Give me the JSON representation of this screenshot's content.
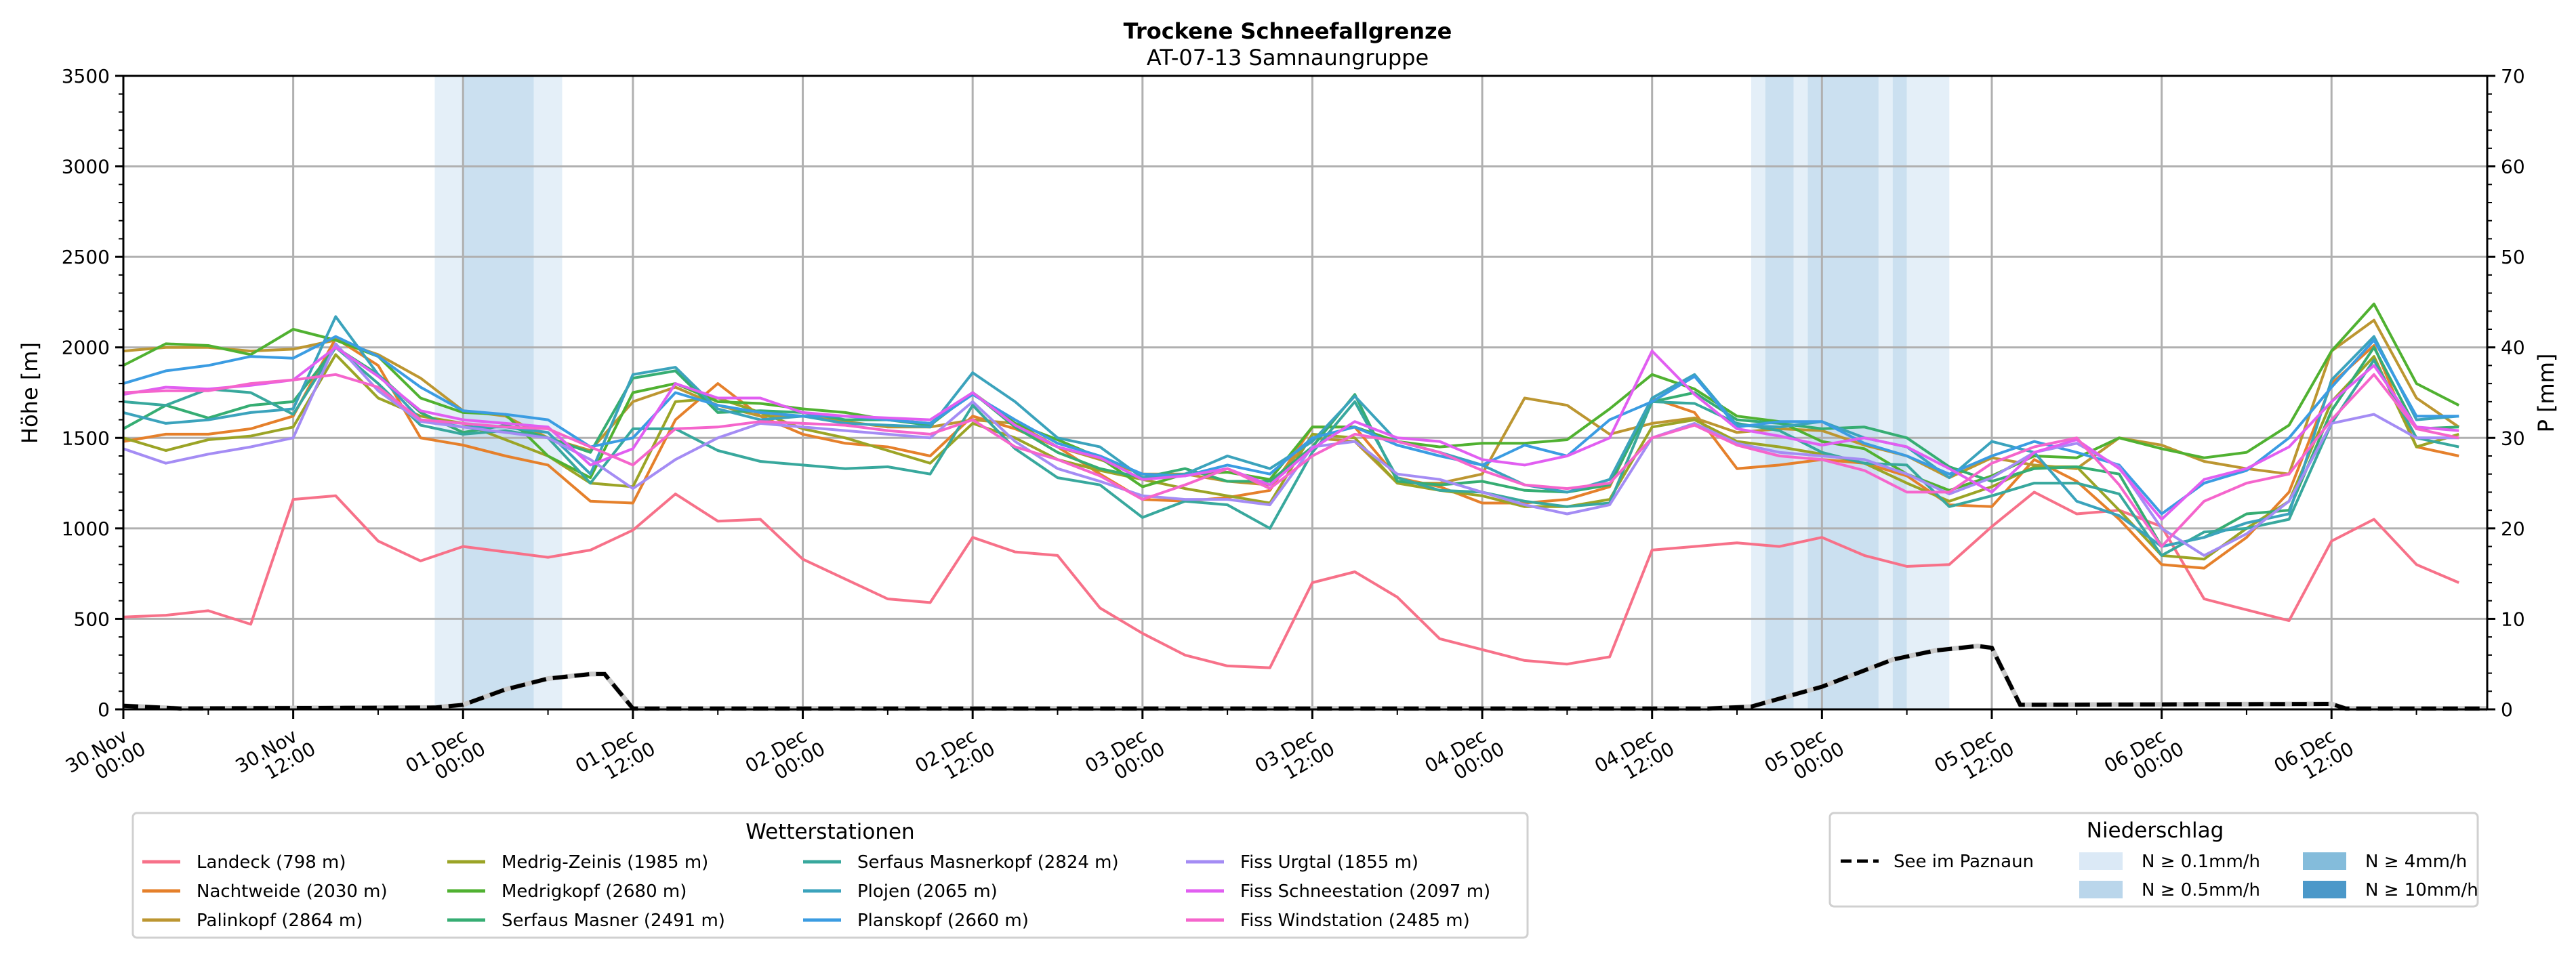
{
  "chart_data": {
    "type": "line",
    "title": "Trockene Schneefallgrenze",
    "subtitle": "AT-07-13 Samnaungruppe",
    "ylabel": "Höhe [m]",
    "y2label": "P [mm]",
    "ylim": [
      0,
      3500
    ],
    "y2lim": [
      0,
      70
    ],
    "yticks": [
      "0",
      "500",
      "1000",
      "1500",
      "2000",
      "2500",
      "3000",
      "3500"
    ],
    "y2ticks": [
      "0",
      "10",
      "20",
      "30",
      "40",
      "50",
      "60",
      "70"
    ],
    "x_unit": "hours since 30.Nov 00:00",
    "xlim": [
      0,
      167
    ],
    "xticks": [
      {
        "h": 0,
        "l1": "30.Nov",
        "l2": "00:00"
      },
      {
        "h": 12,
        "l1": "30.Nov",
        "l2": "12:00"
      },
      {
        "h": 24,
        "l1": "01.Dec",
        "l2": "00:00"
      },
      {
        "h": 36,
        "l1": "01.Dec",
        "l2": "12:00"
      },
      {
        "h": 48,
        "l1": "02.Dec",
        "l2": "00:00"
      },
      {
        "h": 60,
        "l1": "02.Dec",
        "l2": "12:00"
      },
      {
        "h": 72,
        "l1": "03.Dec",
        "l2": "00:00"
      },
      {
        "h": 84,
        "l1": "03.Dec",
        "l2": "12:00"
      },
      {
        "h": 96,
        "l1": "04.Dec",
        "l2": "00:00"
      },
      {
        "h": 108,
        "l1": "04.Dec",
        "l2": "12:00"
      },
      {
        "h": 120,
        "l1": "05.Dec",
        "l2": "00:00"
      },
      {
        "h": 132,
        "l1": "05.Dec",
        "l2": "12:00"
      },
      {
        "h": 144,
        "l1": "06.Dec",
        "l2": "00:00"
      },
      {
        "h": 156,
        "l1": "06.Dec",
        "l2": "12:00"
      }
    ],
    "grid": true,
    "x_step_hours": 3,
    "series": [
      {
        "name": "Landeck (798 m)",
        "color": "#f77189",
        "values": [
          510,
          520,
          545,
          470,
          1160,
          1180,
          930,
          820,
          900,
          870,
          840,
          880,
          990,
          1190,
          1040,
          1050,
          830,
          720,
          610,
          590,
          950,
          870,
          850,
          560,
          420,
          300,
          240,
          230,
          700,
          760,
          620,
          390,
          330,
          270,
          250,
          290,
          880,
          900,
          920,
          900,
          950,
          850,
          790,
          800,
          1010,
          1200,
          1080,
          1100,
          1010,
          610,
          550,
          490,
          930,
          1050,
          800,
          700
        ]
      },
      {
        "name": "Nachtweide (2030 m)",
        "color": "#e5802b",
        "values": [
          1480,
          1520,
          1520,
          1550,
          1620,
          2050,
          1900,
          1500,
          1460,
          1400,
          1350,
          1150,
          1140,
          1600,
          1800,
          1620,
          1520,
          1470,
          1450,
          1400,
          1620,
          1550,
          1450,
          1300,
          1160,
          1150,
          1170,
          1210,
          1560,
          1560,
          1280,
          1230,
          1140,
          1140,
          1160,
          1230,
          1720,
          1640,
          1330,
          1350,
          1380,
          1360,
          1290,
          1130,
          1120,
          1380,
          1260,
          1050,
          800,
          780,
          950,
          1200,
          1800,
          2010,
          1450,
          1400
        ]
      },
      {
        "name": "Palinkopf (2864 m)",
        "color": "#bc9631",
        "values": [
          1980,
          2000,
          2000,
          1980,
          1990,
          2040,
          1960,
          1830,
          1650,
          1620,
          1500,
          1430,
          1700,
          1780,
          1680,
          1620,
          1620,
          1590,
          1560,
          1560,
          1600,
          1580,
          1450,
          1380,
          1300,
          1300,
          1260,
          1240,
          1500,
          1480,
          1250,
          1250,
          1300,
          1720,
          1680,
          1520,
          1580,
          1610,
          1530,
          1550,
          1540,
          1460,
          1400,
          1280,
          1390,
          1350,
          1330,
          1500,
          1460,
          1370,
          1330,
          1300,
          1980,
          2150,
          1720,
          1560
        ]
      },
      {
        "name": "Medrig-Zeinis (1985 m)",
        "color": "#9ba426",
        "values": [
          1500,
          1430,
          1490,
          1510,
          1560,
          1960,
          1720,
          1620,
          1580,
          1490,
          1400,
          1250,
          1230,
          1700,
          1720,
          1640,
          1550,
          1500,
          1430,
          1360,
          1580,
          1500,
          1380,
          1320,
          1270,
          1220,
          1180,
          1140,
          1520,
          1500,
          1250,
          1210,
          1180,
          1120,
          1120,
          1160,
          1560,
          1600,
          1480,
          1450,
          1410,
          1360,
          1250,
          1150,
          1230,
          1340,
          1340,
          1100,
          850,
          830,
          1000,
          1150,
          1700,
          1950,
          1450,
          1520
        ]
      },
      {
        "name": "Medrigkopf (2680 m)",
        "color": "#50b131",
        "values": [
          1900,
          2020,
          2010,
          1960,
          2100,
          2040,
          1950,
          1720,
          1640,
          1630,
          1400,
          1280,
          1750,
          1800,
          1700,
          1690,
          1660,
          1640,
          1600,
          1580,
          1750,
          1580,
          1490,
          1390,
          1230,
          1300,
          1310,
          1270,
          1560,
          1560,
          1480,
          1450,
          1470,
          1470,
          1490,
          1660,
          1850,
          1770,
          1620,
          1590,
          1480,
          1440,
          1300,
          1210,
          1290,
          1400,
          1390,
          1500,
          1440,
          1390,
          1420,
          1570,
          1980,
          2240,
          1800,
          1680
        ]
      },
      {
        "name": "Serfaus Masner (2491 m)",
        "color": "#36ad73",
        "values": [
          1550,
          1680,
          1610,
          1680,
          1700,
          2000,
          1850,
          1640,
          1530,
          1570,
          1500,
          1420,
          1830,
          1870,
          1640,
          1650,
          1640,
          1600,
          1600,
          1570,
          1750,
          1560,
          1420,
          1330,
          1280,
          1330,
          1260,
          1260,
          1450,
          1740,
          1260,
          1240,
          1260,
          1210,
          1200,
          1240,
          1700,
          1750,
          1600,
          1580,
          1550,
          1560,
          1500,
          1340,
          1260,
          1330,
          1340,
          1300,
          900,
          950,
          1080,
          1100,
          1650,
          2000,
          1550,
          1560
        ]
      },
      {
        "name": "Serfaus Masnerkopf (2824 m)",
        "color": "#38a89d",
        "values": [
          1700,
          1680,
          1770,
          1750,
          1630,
          2000,
          1800,
          1570,
          1520,
          1540,
          1500,
          1250,
          1550,
          1550,
          1430,
          1370,
          1350,
          1330,
          1340,
          1300,
          1680,
          1440,
          1280,
          1240,
          1060,
          1150,
          1130,
          1000,
          1420,
          1700,
          1280,
          1210,
          1200,
          1150,
          1120,
          1140,
          1700,
          1690,
          1580,
          1540,
          1420,
          1360,
          1350,
          1120,
          1180,
          1250,
          1250,
          1190,
          850,
          980,
          1000,
          1050,
          1580,
          1930,
          1500,
          1450
        ]
      },
      {
        "name": "Plojen (2065 m)",
        "color": "#3ba3bc",
        "values": [
          1640,
          1580,
          1600,
          1640,
          1660,
          2170,
          1850,
          1600,
          1560,
          1560,
          1530,
          1300,
          1850,
          1890,
          1660,
          1600,
          1620,
          1580,
          1570,
          1560,
          1860,
          1700,
          1500,
          1450,
          1280,
          1300,
          1400,
          1330,
          1480,
          1730,
          1480,
          1420,
          1350,
          1240,
          1200,
          1270,
          1720,
          1850,
          1570,
          1560,
          1590,
          1500,
          1450,
          1280,
          1480,
          1420,
          1150,
          1070,
          900,
          950,
          1030,
          1080,
          1820,
          2060,
          1600,
          1620
        ]
      },
      {
        "name": "Planskopf (2660 m)",
        "color": "#3b9ce2",
        "values": [
          1800,
          1870,
          1900,
          1950,
          1940,
          2060,
          1950,
          1780,
          1650,
          1630,
          1600,
          1450,
          1500,
          1750,
          1680,
          1640,
          1620,
          1620,
          1600,
          1580,
          1740,
          1600,
          1470,
          1400,
          1300,
          1290,
          1350,
          1300,
          1500,
          1560,
          1460,
          1400,
          1350,
          1460,
          1400,
          1600,
          1700,
          1840,
          1560,
          1590,
          1590,
          1470,
          1400,
          1300,
          1400,
          1480,
          1420,
          1350,
          1080,
          1250,
          1320,
          1500,
          1780,
          2040,
          1620,
          1620
        ]
      },
      {
        "name": "Fiss Urgtal  (1855 m)",
        "color": "#a48cf4",
        "values": [
          1440,
          1360,
          1410,
          1450,
          1500,
          2020,
          1760,
          1590,
          1560,
          1530,
          1500,
          1380,
          1220,
          1380,
          1500,
          1580,
          1560,
          1540,
          1520,
          1500,
          1700,
          1480,
          1330,
          1260,
          1180,
          1160,
          1160,
          1130,
          1450,
          1480,
          1300,
          1270,
          1200,
          1130,
          1080,
          1130,
          1500,
          1580,
          1470,
          1420,
          1400,
          1380,
          1300,
          1190,
          1280,
          1420,
          1470,
          1340,
          1000,
          850,
          970,
          1150,
          1580,
          1630,
          1500,
          1500
        ]
      },
      {
        "name": "Fiss Schneestation (2097 m)",
        "color": "#e15ef1",
        "values": [
          1740,
          1780,
          1770,
          1790,
          1820,
          2000,
          1840,
          1650,
          1600,
          1580,
          1560,
          1350,
          1440,
          1800,
          1720,
          1720,
          1640,
          1620,
          1610,
          1600,
          1750,
          1570,
          1450,
          1390,
          1270,
          1290,
          1330,
          1240,
          1440,
          1590,
          1500,
          1480,
          1380,
          1350,
          1400,
          1500,
          1980,
          1740,
          1550,
          1510,
          1460,
          1500,
          1450,
          1330,
          1200,
          1420,
          1490,
          1330,
          1050,
          1270,
          1330,
          1450,
          1700,
          1900,
          1560,
          1540
        ]
      },
      {
        "name": "Fiss Windstation (2485 m)",
        "color": "#f565cc",
        "values": [
          1750,
          1760,
          1760,
          1800,
          1820,
          1850,
          1780,
          1600,
          1580,
          1560,
          1550,
          1450,
          1350,
          1550,
          1560,
          1590,
          1580,
          1570,
          1540,
          1520,
          1600,
          1450,
          1380,
          1290,
          1160,
          1240,
          1330,
          1220,
          1400,
          1520,
          1480,
          1420,
          1320,
          1240,
          1220,
          1250,
          1500,
          1570,
          1460,
          1400,
          1380,
          1320,
          1200,
          1200,
          1360,
          1450,
          1500,
          1240,
          900,
          1150,
          1250,
          1300,
          1600,
          1850,
          1550,
          1500
        ]
      }
    ],
    "lake": {
      "name": "See im Paznaun",
      "color": "#000000",
      "points": [
        [
          0,
          0.4
        ],
        [
          4,
          0.1
        ],
        [
          22,
          0.2
        ],
        [
          24,
          0.5
        ],
        [
          27,
          2.2
        ],
        [
          30,
          3.4
        ],
        [
          33,
          3.9
        ],
        [
          34,
          3.9
        ],
        [
          36,
          0.1
        ],
        [
          112,
          0.1
        ],
        [
          115,
          0.3
        ],
        [
          120,
          2.5
        ],
        [
          125,
          5.5
        ],
        [
          128,
          6.5
        ],
        [
          131,
          7.0
        ],
        [
          132,
          6.8
        ],
        [
          134,
          0.5
        ],
        [
          156,
          0.6
        ],
        [
          157,
          0.1
        ],
        [
          167,
          0.1
        ]
      ]
    },
    "precip_bands": [
      {
        "start": 22,
        "end": 24,
        "level": "0.1"
      },
      {
        "start": 24,
        "end": 29,
        "level": "0.5"
      },
      {
        "start": 29,
        "end": 31,
        "level": "0.1"
      },
      {
        "start": 115,
        "end": 116,
        "level": "0.1"
      },
      {
        "start": 116,
        "end": 118,
        "level": "0.5"
      },
      {
        "start": 118,
        "end": 119,
        "level": "0.1"
      },
      {
        "start": 119,
        "end": 124,
        "level": "0.5"
      },
      {
        "start": 124,
        "end": 125,
        "level": "0.1"
      },
      {
        "start": 125,
        "end": 126,
        "level": "0.5"
      },
      {
        "start": 126,
        "end": 129,
        "level": "0.1"
      }
    ],
    "legend_stations_title": "Wetterstationen",
    "legend_precip_title": "Niederschlag",
    "precip_levels": [
      {
        "key": "0.1",
        "label": "N ≥ 0.1mm/h",
        "color": "#dbe9f6"
      },
      {
        "key": "0.5",
        "label": "N ≥ 0.5mm/h",
        "color": "#bad6eb"
      },
      {
        "key": "4",
        "label": "N ≥ 4mm/h",
        "color": "#84bcdb"
      },
      {
        "key": "10",
        "label": "N ≥ 10mm/h",
        "color": "#4b98c9"
      }
    ]
  }
}
